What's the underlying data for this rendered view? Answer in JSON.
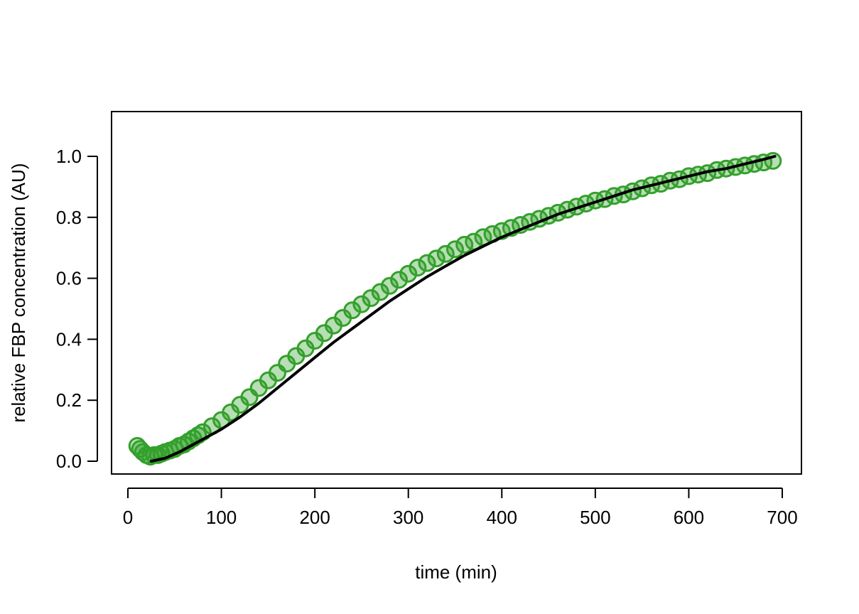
{
  "chart_data": {
    "type": "scatter",
    "xlabel": "time (min)",
    "ylabel": "relative FBP concentration (AU)",
    "xlim": [
      0,
      700
    ],
    "ylim": [
      -0.04,
      1.15
    ],
    "x_ticks": [
      0,
      100,
      200,
      300,
      400,
      500,
      600,
      700
    ],
    "y_ticks": [
      0.0,
      0.2,
      0.4,
      0.6,
      0.8,
      1.0
    ],
    "x_tick_labels": [
      "0",
      "100",
      "200",
      "300",
      "400",
      "500",
      "600",
      "700"
    ],
    "y_tick_labels": [
      "0.0",
      "0.2",
      "0.4",
      "0.6",
      "0.8",
      "1.0"
    ],
    "grid": false,
    "legend": "none",
    "colors": {
      "points": "#33a02c",
      "points_fill": "rgba(51,160,44,0.35)",
      "fit_line": "#000000"
    },
    "series": [
      {
        "kind": "points",
        "x": [
          10,
          13,
          16,
          20,
          24,
          28,
          32,
          36,
          40,
          45,
          50,
          55,
          60,
          65,
          70,
          75,
          80,
          90,
          100,
          110,
          120,
          130,
          140,
          150,
          160,
          170,
          180,
          190,
          200,
          210,
          220,
          230,
          240,
          250,
          260,
          270,
          280,
          290,
          300,
          310,
          320,
          330,
          340,
          350,
          360,
          370,
          380,
          390,
          400,
          410,
          420,
          430,
          440,
          450,
          460,
          470,
          480,
          490,
          500,
          510,
          520,
          530,
          540,
          550,
          560,
          570,
          580,
          590,
          600,
          610,
          620,
          630,
          640,
          650,
          660,
          670,
          680,
          690
        ],
        "y": [
          0.05,
          0.04,
          0.03,
          0.02,
          0.015,
          0.02,
          0.02,
          0.025,
          0.03,
          0.035,
          0.04,
          0.05,
          0.055,
          0.065,
          0.075,
          0.085,
          0.095,
          0.115,
          0.135,
          0.16,
          0.185,
          0.21,
          0.24,
          0.265,
          0.29,
          0.32,
          0.345,
          0.37,
          0.395,
          0.42,
          0.445,
          0.47,
          0.495,
          0.515,
          0.535,
          0.555,
          0.575,
          0.595,
          0.615,
          0.635,
          0.65,
          0.665,
          0.68,
          0.695,
          0.71,
          0.72,
          0.735,
          0.745,
          0.755,
          0.765,
          0.775,
          0.785,
          0.795,
          0.805,
          0.815,
          0.825,
          0.835,
          0.845,
          0.855,
          0.86,
          0.87,
          0.875,
          0.885,
          0.895,
          0.905,
          0.91,
          0.92,
          0.925,
          0.935,
          0.94,
          0.945,
          0.955,
          0.96,
          0.965,
          0.97,
          0.975,
          0.98,
          0.985
        ]
      },
      {
        "kind": "fit-line",
        "x": [
          25,
          40,
          55,
          70,
          85,
          100,
          120,
          140,
          160,
          180,
          200,
          220,
          240,
          260,
          280,
          300,
          320,
          340,
          360,
          380,
          400,
          420,
          440,
          460,
          480,
          500,
          520,
          540,
          560,
          580,
          600,
          620,
          640,
          660,
          680,
          692
        ],
        "y": [
          0.0,
          0.01,
          0.03,
          0.055,
          0.08,
          0.105,
          0.145,
          0.19,
          0.24,
          0.29,
          0.34,
          0.39,
          0.435,
          0.48,
          0.525,
          0.565,
          0.605,
          0.64,
          0.675,
          0.705,
          0.735,
          0.76,
          0.785,
          0.81,
          0.83,
          0.85,
          0.87,
          0.89,
          0.905,
          0.92,
          0.935,
          0.95,
          0.96,
          0.975,
          0.99,
          1.0
        ]
      }
    ]
  }
}
